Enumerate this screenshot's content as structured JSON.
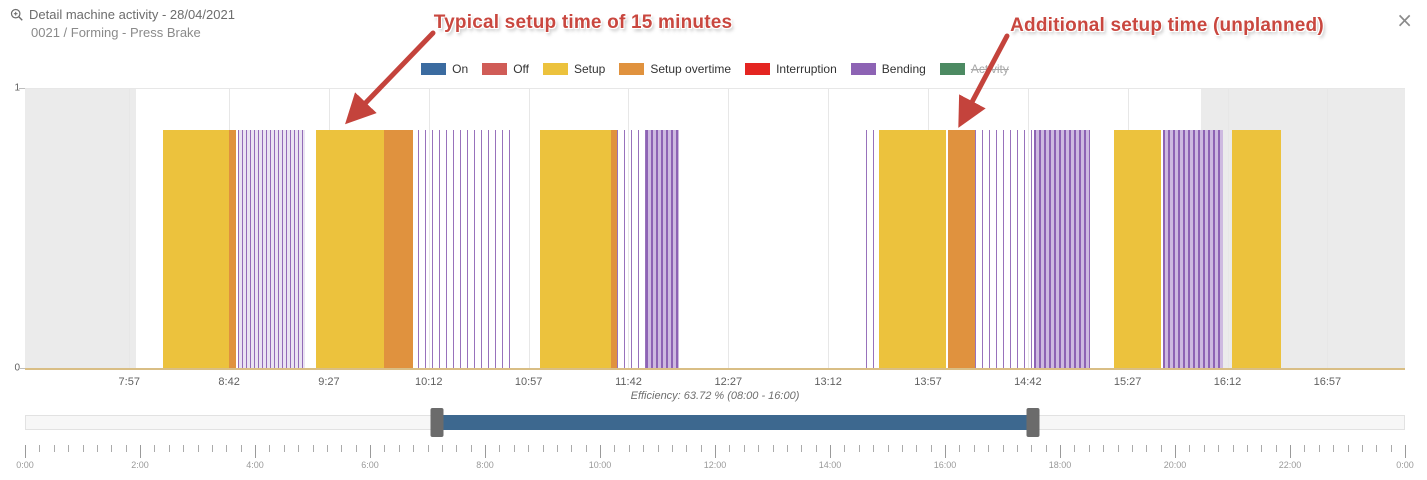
{
  "header": {
    "title": "Detail machine activity - 28/04/2021",
    "subtitle": "0021 / Forming - Press Brake",
    "close_label": "×"
  },
  "annotations": [
    {
      "text": "Typical setup time of 15 minutes",
      "color": "#c9473f"
    },
    {
      "text": "Additional setup time (unplanned)",
      "color": "#c9473f"
    }
  ],
  "chart_data": {
    "type": "timeline-column",
    "title": "Detail machine activity - 28/04/2021",
    "subtitle": "0021 / Forming - Press Brake",
    "y_axis": {
      "min": 0,
      "max": 1,
      "min_label": "0",
      "max_label": "1"
    },
    "x_axis": {
      "domain_start": "7:10",
      "domain_end": "17:32",
      "tick_labels": [
        "7:57",
        "8:42",
        "9:27",
        "10:12",
        "10:57",
        "11:42",
        "12:27",
        "13:12",
        "13:57",
        "14:42",
        "15:27",
        "16:12",
        "16:57"
      ]
    },
    "bar_value": 0.85,
    "shift": {
      "start": "8:00",
      "end": "16:00",
      "outside_band_color": "#ebebeb"
    },
    "legend": [
      {
        "label": "On",
        "color": "#3b6ba0",
        "disabled": false
      },
      {
        "label": "Off",
        "color": "#d05c57",
        "disabled": false
      },
      {
        "label": "Setup",
        "color": "#ecc23d",
        "disabled": false
      },
      {
        "label": "Setup overtime",
        "color": "#e0923e",
        "disabled": false
      },
      {
        "label": "Interruption",
        "color": "#e42521",
        "disabled": false
      },
      {
        "label": "Bending",
        "color": "#8d63b4",
        "disabled": false
      },
      {
        "label": "Activity",
        "color": "#4c8a62",
        "disabled": true
      }
    ],
    "segments": [
      {
        "type": "setup",
        "start": "8:12",
        "end": "8:42"
      },
      {
        "type": "setup_overtime",
        "start": "8:42",
        "end": "8:45"
      },
      {
        "type": "bending",
        "density": "medium",
        "start": "8:46",
        "end": "9:16"
      },
      {
        "type": "setup",
        "start": "9:21",
        "end": "9:52"
      },
      {
        "type": "setup_overtime",
        "start": "9:52",
        "end": "10:05"
      },
      {
        "type": "bending",
        "density": "sparse",
        "start": "10:07",
        "end": "10:51"
      },
      {
        "type": "setup",
        "start": "11:02",
        "end": "11:34"
      },
      {
        "type": "setup_overtime",
        "start": "11:34",
        "end": "11:37"
      },
      {
        "type": "bending",
        "density": "sparse",
        "start": "11:37",
        "end": "11:50"
      },
      {
        "type": "bending",
        "density": "dense",
        "start": "11:50",
        "end": "12:05"
      },
      {
        "type": "bending",
        "density": "sparse",
        "start": "13:29",
        "end": "13:33"
      },
      {
        "type": "setup",
        "start": "13:35",
        "end": "14:05"
      },
      {
        "type": "setup_overtime",
        "start": "14:06",
        "end": "14:18"
      },
      {
        "type": "bending",
        "density": "sparse",
        "start": "14:18",
        "end": "14:45"
      },
      {
        "type": "bending",
        "density": "dense",
        "start": "14:45",
        "end": "15:10"
      },
      {
        "type": "setup",
        "start": "15:21",
        "end": "15:42"
      },
      {
        "type": "bending",
        "density": "dense",
        "start": "15:43",
        "end": "16:10"
      },
      {
        "type": "setup",
        "start": "16:14",
        "end": "16:36"
      }
    ],
    "efficiency_label": "Efficiency: 63.72 % (08:00 - 16:00)"
  },
  "navigator": {
    "selected_start": "7:10",
    "selected_end": "17:32",
    "bar_color": "#3d688f",
    "handle_color": "#6b6b6b"
  },
  "ruler": {
    "labels": [
      "0:00",
      "2:00",
      "4:00",
      "6:00",
      "8:00",
      "10:00",
      "12:00",
      "14:00",
      "16:00",
      "18:00",
      "20:00",
      "22:00",
      "0:00"
    ],
    "minor_tick_minutes": 15,
    "major_tick_minutes": 120
  }
}
